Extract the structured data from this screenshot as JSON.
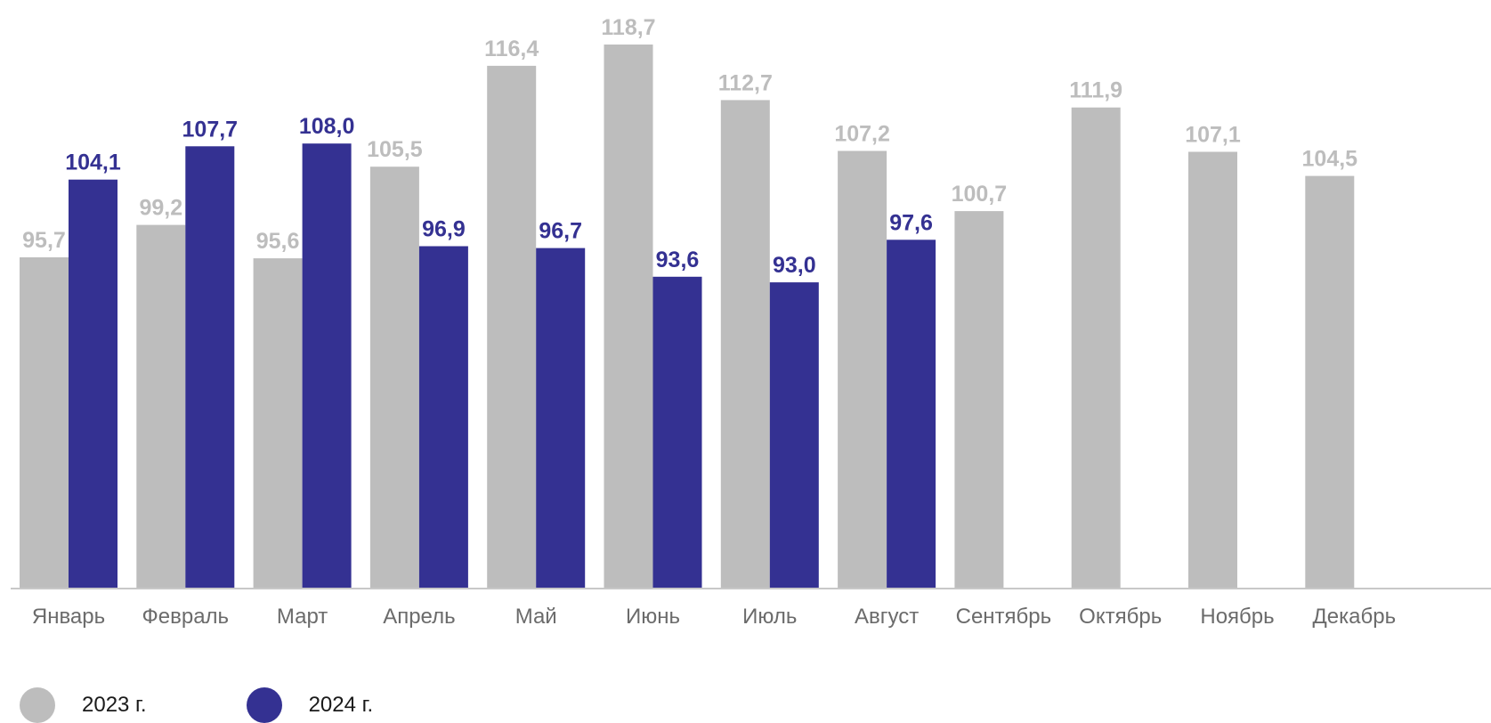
{
  "chart_data": {
    "type": "bar",
    "title": "",
    "xlabel": "",
    "ylabel": "",
    "categories": [
      "Январь",
      "Февраль",
      "Март",
      "Апрель",
      "Май",
      "Июнь",
      "Июль",
      "Август",
      "Сентябрь",
      "Октябрь",
      "Ноябрь",
      "Декабрь"
    ],
    "series": [
      {
        "name": "2023 г.",
        "color": "#bdbdbd",
        "values": [
          95.7,
          99.2,
          95.6,
          105.5,
          116.4,
          118.7,
          112.7,
          107.2,
          100.7,
          111.9,
          107.1,
          104.5
        ],
        "labels": [
          "95,7",
          "99,2",
          "95,6",
          "105,5",
          "116,4",
          "118,7",
          "112,7",
          "107,2",
          "100,7",
          "111,9",
          "107,1",
          "104,5"
        ]
      },
      {
        "name": "2024 г.",
        "color": "#343192",
        "values": [
          104.1,
          107.7,
          108.0,
          96.9,
          96.7,
          93.6,
          93.0,
          97.6,
          null,
          null,
          null,
          null
        ],
        "labels": [
          "104,1",
          "107,7",
          "108,0",
          "96,9",
          "96,7",
          "93,6",
          "93,0",
          "97,6",
          null,
          null,
          null,
          null
        ]
      }
    ],
    "ylim": [
      60,
      120
    ],
    "grid": false,
    "legend": "bottom-left"
  }
}
